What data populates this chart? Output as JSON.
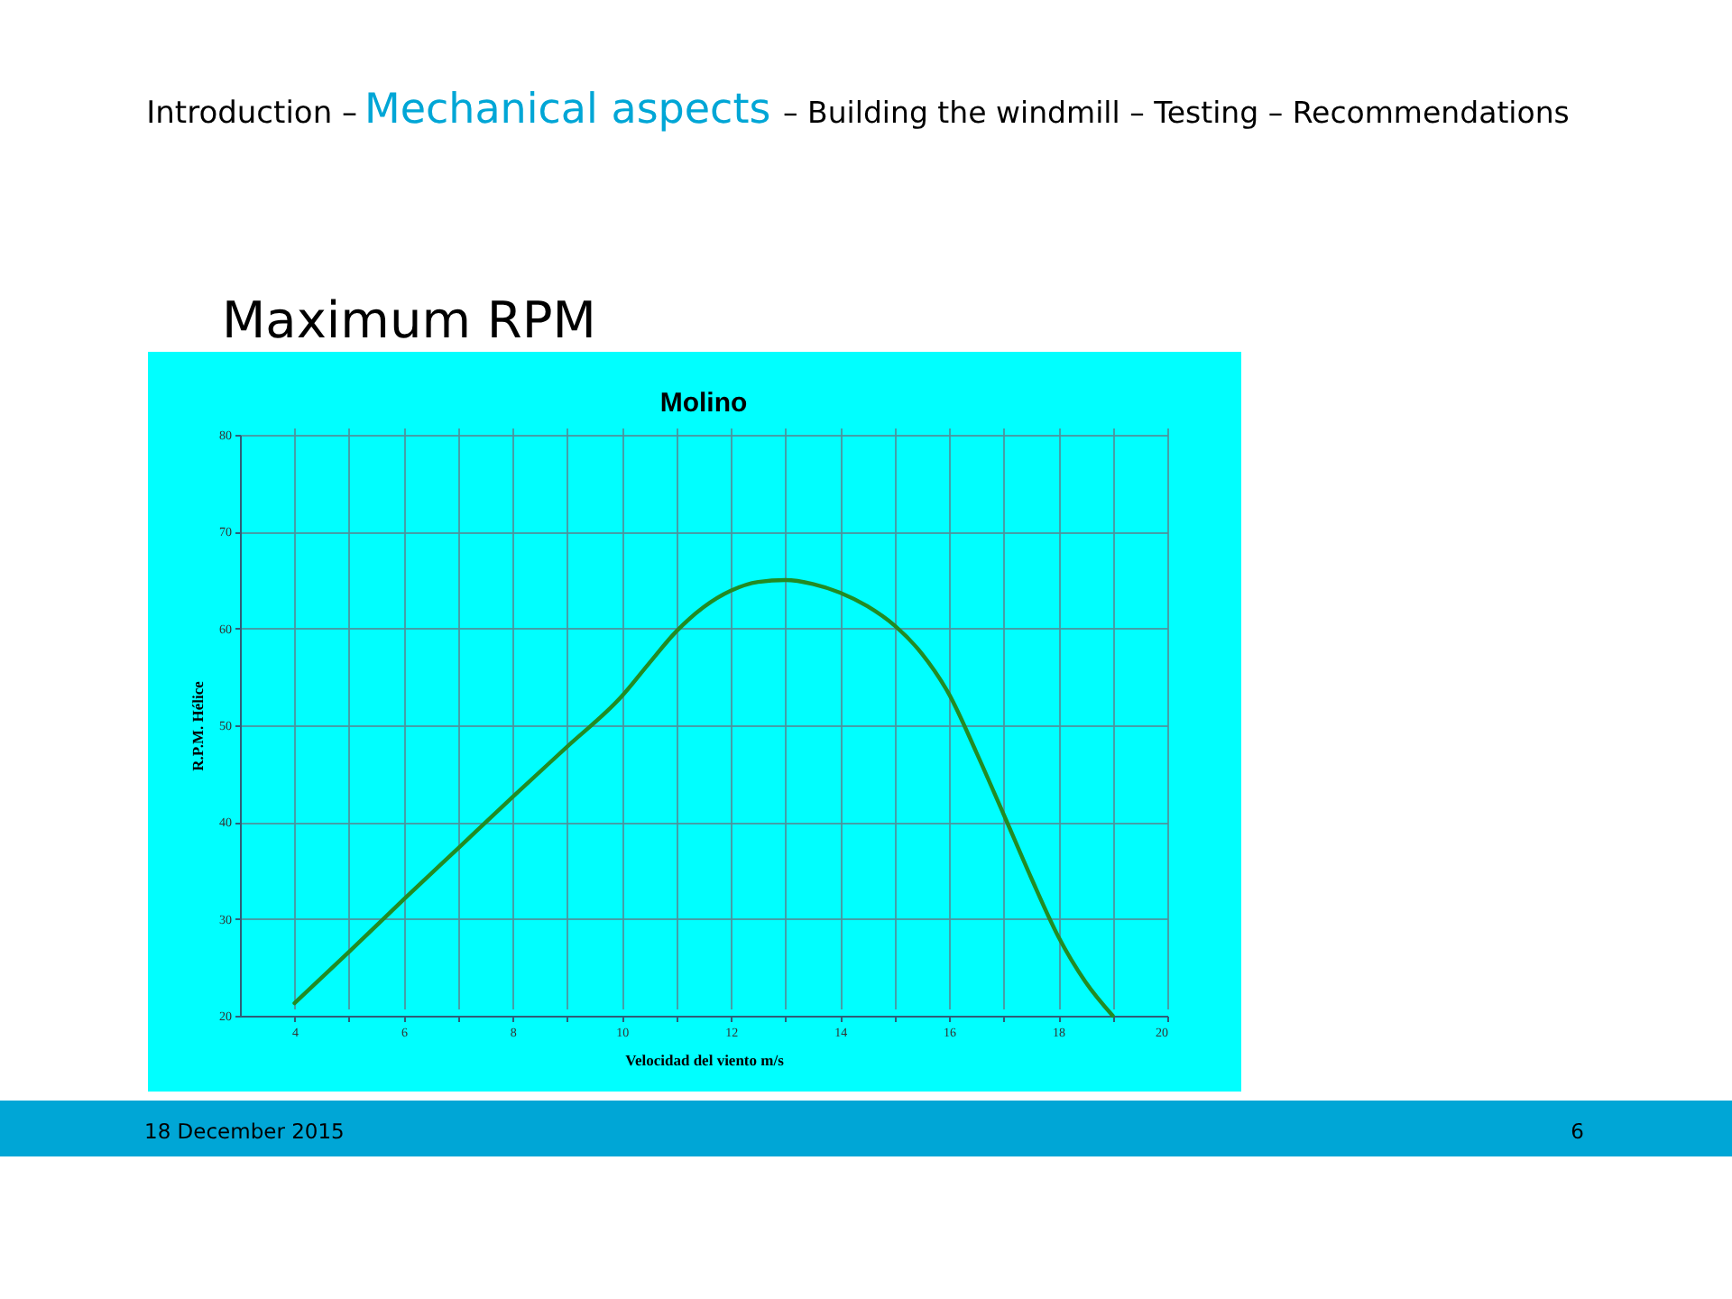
{
  "chart_data": {
    "type": "line",
    "title": "Molino",
    "xlabel": "Velocidad del viento  m/s",
    "ylabel": "R.P.M. Hélice",
    "x": [
      4,
      5,
      6,
      7,
      8,
      9,
      10,
      10.5,
      11,
      11.5,
      12,
      12.5,
      13,
      13.5,
      14,
      14.5,
      15,
      15.5,
      16,
      16.5,
      17,
      17.5,
      18,
      18.5,
      19
    ],
    "series": [
      {
        "color": "#238b23",
        "values": [
          21.3,
          26.6,
          32.0,
          37.3,
          42.6,
          47.8,
          53.0,
          56.4,
          59.7,
          62.2,
          63.9,
          64.8,
          65.0,
          64.6,
          63.7,
          62.3,
          60.3,
          57.4,
          53.2,
          47.2,
          40.8,
          34.3,
          28.2,
          23.5,
          20.0
        ]
      }
    ],
    "xlim": [
      3,
      20
    ],
    "xticks": [
      4,
      {
        "value": 5,
        "label": null
      },
      6,
      {
        "value": 7,
        "label": null
      },
      8,
      {
        "value": 9,
        "label": null
      },
      10,
      {
        "value": 11,
        "label": null
      },
      12,
      {
        "value": 13,
        "label": null
      },
      14,
      {
        "value": 15,
        "label": null
      },
      16,
      {
        "value": 17,
        "label": null
      },
      18,
      {
        "value": 19,
        "label": null
      },
      20
    ],
    "ylim": [
      20,
      80
    ],
    "yticks": [
      20,
      30,
      40,
      50,
      60,
      70,
      80
    ],
    "grid": true,
    "line_style": "solid",
    "annotations": [
      "Introduction –",
      "Mechanical aspects",
      "– Building the windmill – Testing – Recommendations",
      "Maximum RPM",
      "18 December 2015",
      "6"
    ]
  }
}
